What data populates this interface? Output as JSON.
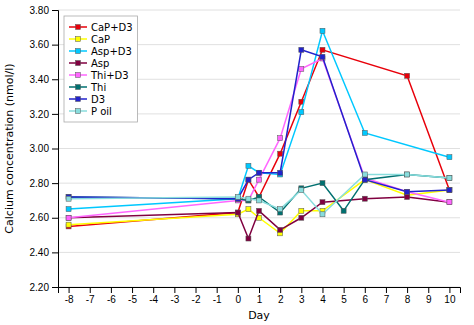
{
  "chart_data": {
    "type": "line",
    "xlabel": "Day",
    "ylabel": "Calcium concentration (nmol/l)",
    "xlim": [
      -8.5,
      10.5
    ],
    "ylim": [
      2.2,
      3.8
    ],
    "xticks": [
      -8,
      -7,
      -6,
      -5,
      -4,
      -3,
      -2,
      -1,
      0,
      1,
      2,
      3,
      4,
      5,
      6,
      7,
      8,
      9,
      10
    ],
    "yticks": [
      {
        "value": 2.2,
        "label": "2.20"
      },
      {
        "value": 2.4,
        "label": "2.40"
      },
      {
        "value": 2.6,
        "label": "2.60"
      },
      {
        "value": 2.8,
        "label": "2.80"
      },
      {
        "value": 3.0,
        "label": "3.00"
      },
      {
        "value": 3.2,
        "label": "3.20"
      },
      {
        "value": 3.4,
        "label": "3.40"
      },
      {
        "value": 3.6,
        "label": "3.60"
      },
      {
        "value": 3.8,
        "label": "3.80"
      }
    ],
    "grid": "y",
    "legend": "upper left",
    "series": [
      {
        "name": "CaP+D3",
        "color": "#e8000a",
        "marker": "square",
        "x": [
          -8,
          0,
          0.5,
          1,
          2,
          3,
          4,
          8,
          10
        ],
        "values": [
          2.55,
          2.63,
          2.82,
          2.72,
          2.97,
          3.27,
          3.57,
          3.42,
          2.76
        ]
      },
      {
        "name": "CaP",
        "color": "#ffff00",
        "marker": "square",
        "x": [
          -8,
          0,
          0.5,
          1,
          2,
          3,
          4,
          6,
          8,
          10
        ],
        "values": [
          2.56,
          2.62,
          2.65,
          2.6,
          2.51,
          2.64,
          2.64,
          2.82,
          2.73,
          2.76
        ]
      },
      {
        "name": "Asp+D3",
        "color": "#00c8ff",
        "marker": "square",
        "x": [
          -8,
          0,
          0.5,
          1,
          2,
          3,
          4,
          6,
          10
        ],
        "values": [
          2.65,
          2.71,
          2.9,
          2.86,
          2.85,
          3.21,
          3.68,
          3.09,
          2.95
        ]
      },
      {
        "name": "Asp",
        "color": "#800040",
        "marker": "square",
        "x": [
          -8,
          0,
          0.5,
          1,
          2,
          3,
          4,
          6,
          8,
          10
        ],
        "values": [
          2.6,
          2.63,
          2.48,
          2.64,
          2.53,
          2.6,
          2.69,
          2.71,
          2.72,
          2.69
        ]
      },
      {
        "name": "Thi+D3",
        "color": "#ff66ff",
        "marker": "square",
        "x": [
          -8,
          0,
          0.5,
          1,
          2,
          3,
          4,
          6,
          8,
          10
        ],
        "values": [
          2.6,
          2.7,
          2.7,
          2.82,
          3.06,
          3.46,
          3.52,
          2.83,
          2.75,
          2.69
        ]
      },
      {
        "name": "Thi",
        "color": "#007070",
        "marker": "square",
        "x": [
          -8,
          0,
          0.5,
          1,
          2,
          3,
          4,
          5,
          6,
          8,
          10
        ],
        "values": [
          2.72,
          2.71,
          2.7,
          2.72,
          2.63,
          2.77,
          2.8,
          2.64,
          2.82,
          2.85,
          2.83
        ]
      },
      {
        "name": "D3",
        "color": "#2222cc",
        "marker": "square",
        "x": [
          -8,
          0,
          0.5,
          1,
          2,
          3,
          4,
          6,
          8,
          10
        ],
        "values": [
          2.72,
          2.71,
          2.82,
          2.86,
          2.86,
          3.57,
          3.53,
          2.82,
          2.75,
          2.76
        ]
      },
      {
        "name": "P oil",
        "color": "#88dddd",
        "marker": "square",
        "x": [
          -8,
          0,
          0.5,
          1,
          2,
          3,
          4,
          6,
          8,
          10
        ],
        "values": [
          2.71,
          2.72,
          2.71,
          2.7,
          2.65,
          2.76,
          2.62,
          2.85,
          2.85,
          2.83
        ]
      }
    ]
  }
}
